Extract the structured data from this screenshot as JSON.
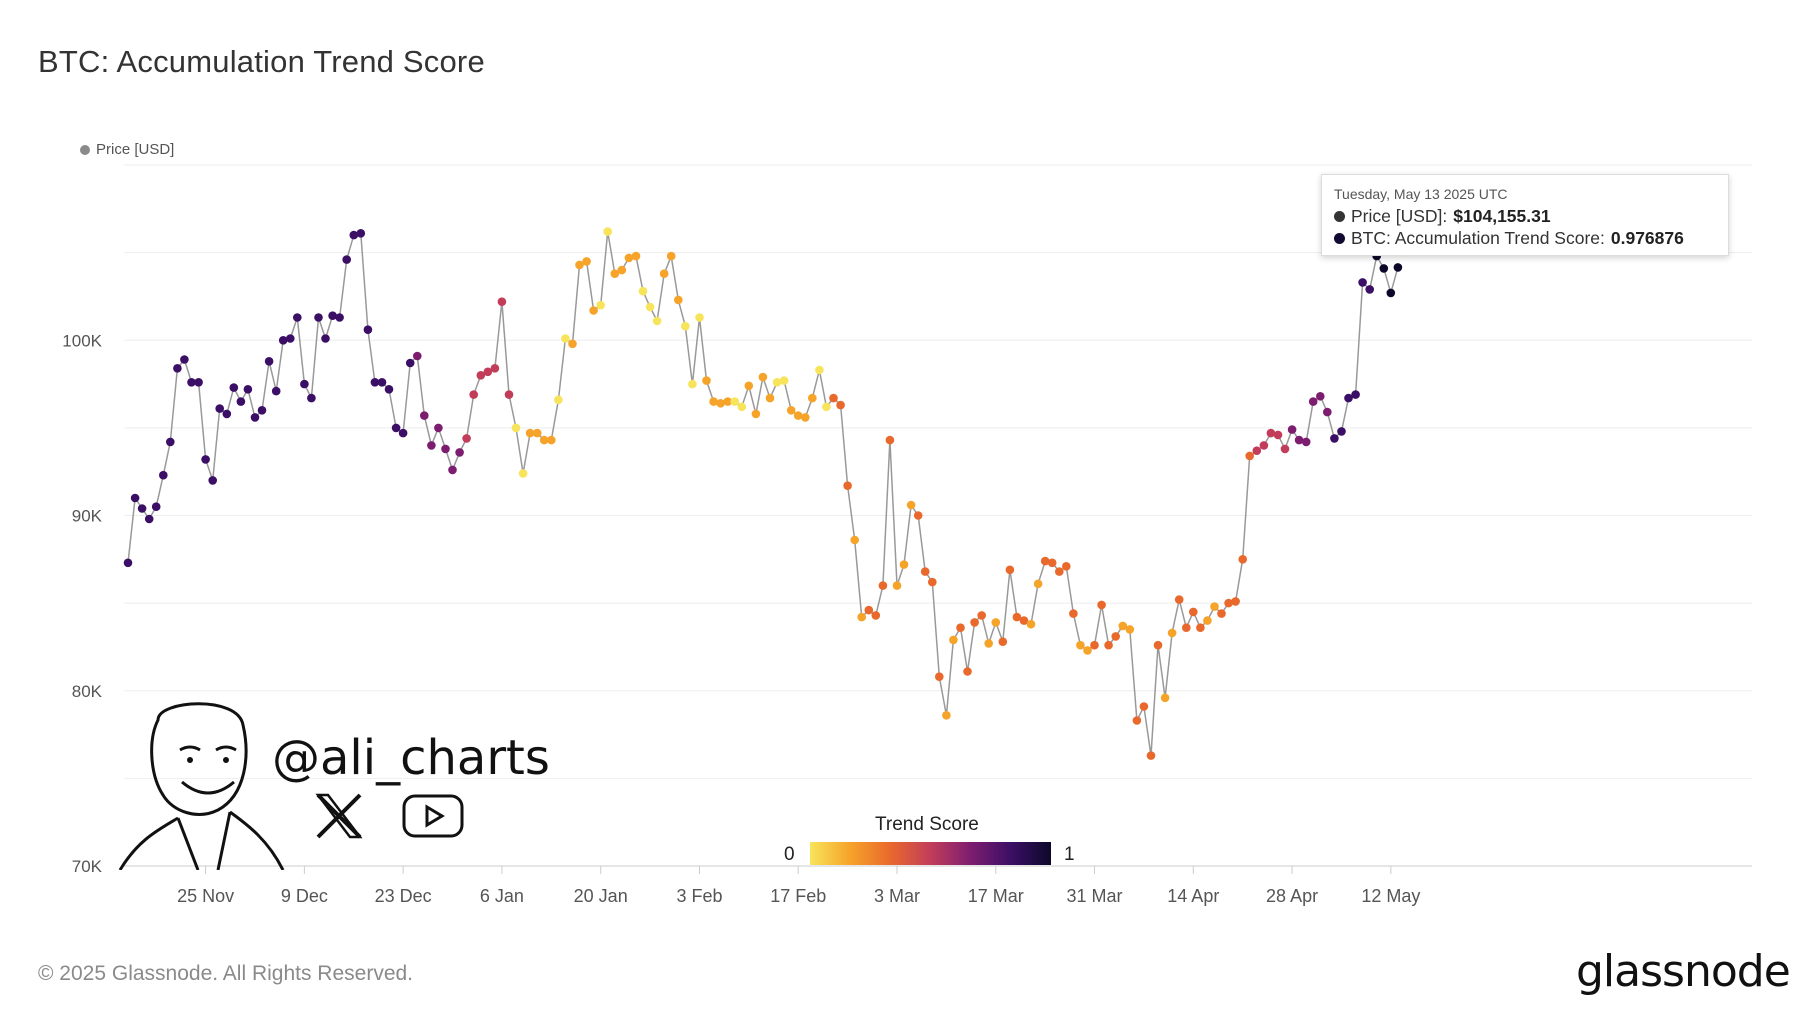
{
  "title": "BTC: Accumulation Trend Score",
  "legend": {
    "label": "Price [USD]"
  },
  "tooltip": {
    "date": "Tuesday, May 13 2025 UTC",
    "price_label": "Price [USD]:",
    "price_value": "$104,155.31",
    "score_label": "BTC: Accumulation Trend Score:",
    "score_value": "0.976876"
  },
  "colorbar": {
    "title": "Trend Score",
    "min_label": "0",
    "max_label": "1"
  },
  "watermark": {
    "handle": "@ali_charts"
  },
  "footer": {
    "copyright": "© 2025 Glassnode. All Rights Reserved.",
    "brand": "glassnode"
  },
  "colors": {
    "line": "#999999",
    "grid": "#eeeeee",
    "score_scale": [
      "#f7e45a",
      "#f6a32a",
      "#e9692c",
      "#c23d5a",
      "#7d1d6f",
      "#3b0f66",
      "#0d0829"
    ]
  },
  "chart_data": {
    "type": "scatter",
    "title": "BTC: Accumulation Trend Score",
    "series_name": "Price [USD]",
    "color_dimension": "Trend Score",
    "x_start": "2025-11-14",
    "x_ticks": [
      "25 Nov",
      "9 Dec",
      "23 Dec",
      "6 Jan",
      "20 Jan",
      "3 Feb",
      "17 Feb",
      "3 Mar",
      "17 Mar",
      "31 Mar",
      "14 Apr",
      "28 Apr",
      "12 May"
    ],
    "y_ticks": [
      "100K",
      "90K",
      "80K",
      "70K"
    ],
    "y_tick_values": [
      100000,
      90000,
      80000,
      70000
    ],
    "ylim": [
      70000,
      110000
    ],
    "grid": true,
    "legend_position": "top-left",
    "price": [
      87300,
      91000,
      90400,
      89800,
      90500,
      92300,
      94200,
      98400,
      98900,
      97600,
      97600,
      93200,
      92000,
      96100,
      95800,
      97300,
      96500,
      97200,
      95600,
      96000,
      98800,
      97100,
      100000,
      100100,
      101300,
      97500,
      96700,
      101300,
      100100,
      101400,
      101300,
      104600,
      106000,
      106100,
      100600,
      97600,
      97600,
      97200,
      95000,
      94700,
      98700,
      99100,
      95700,
      94000,
      95000,
      93800,
      92600,
      93600,
      94400,
      96900,
      98000,
      98200,
      98400,
      102200,
      96900,
      95000,
      92400,
      94700,
      94700,
      94300,
      94300,
      96600,
      100100,
      99800,
      104300,
      104500,
      101700,
      102000,
      106200,
      103800,
      104000,
      104700,
      104800,
      102800,
      101900,
      101100,
      103800,
      104800,
      102300,
      100800,
      97500,
      101300,
      97700,
      96500,
      96400,
      96500,
      96500,
      96200,
      97400,
      95800,
      97900,
      96700,
      97600,
      97700,
      96000,
      95700,
      95600,
      96700,
      98300,
      96200,
      96700,
      96300,
      91700,
      88600,
      84200,
      84600,
      84300,
      86000,
      94300,
      86000,
      87200,
      90600,
      90000,
      86800,
      86200,
      80800,
      78600,
      82900,
      83600,
      81100,
      83900,
      84300,
      82700,
      83900,
      82800,
      86900,
      84200,
      84000,
      83800,
      86100,
      87400,
      87300,
      86800,
      87100,
      84400,
      82600,
      82300,
      82600,
      84900,
      82600,
      83100,
      83700,
      83500,
      78300,
      79100,
      76300,
      82600,
      79600,
      83300,
      85200,
      83600,
      84500,
      83600,
      84000,
      84800,
      84400,
      85000,
      85100,
      87500,
      93400,
      93700,
      94000,
      94700,
      94600,
      93800,
      94900,
      94300,
      94200,
      96500,
      96800,
      95900,
      94400,
      94800,
      96700,
      96900,
      103300,
      102900,
      104800,
      104100,
      102700,
      104155
    ]
  }
}
